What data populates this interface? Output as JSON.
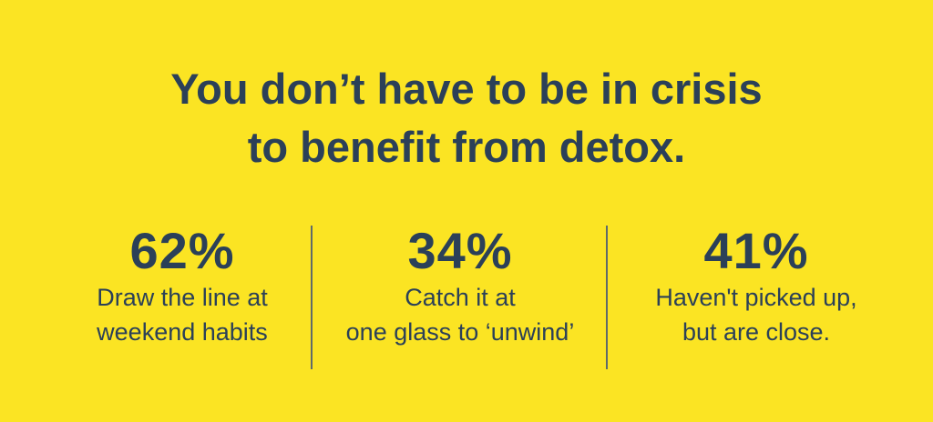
{
  "title": [
    "You don’t have to be in crisis",
    "to benefit from detox."
  ],
  "stats": [
    {
      "value": "62%",
      "label": [
        "Draw the line at",
        "weekend habits"
      ]
    },
    {
      "value": "34%",
      "label": [
        "Catch it at",
        "one glass to ‘unwind’"
      ]
    },
    {
      "value": "41%",
      "label": [
        "Haven't picked up,",
        "but are close."
      ]
    }
  ]
}
